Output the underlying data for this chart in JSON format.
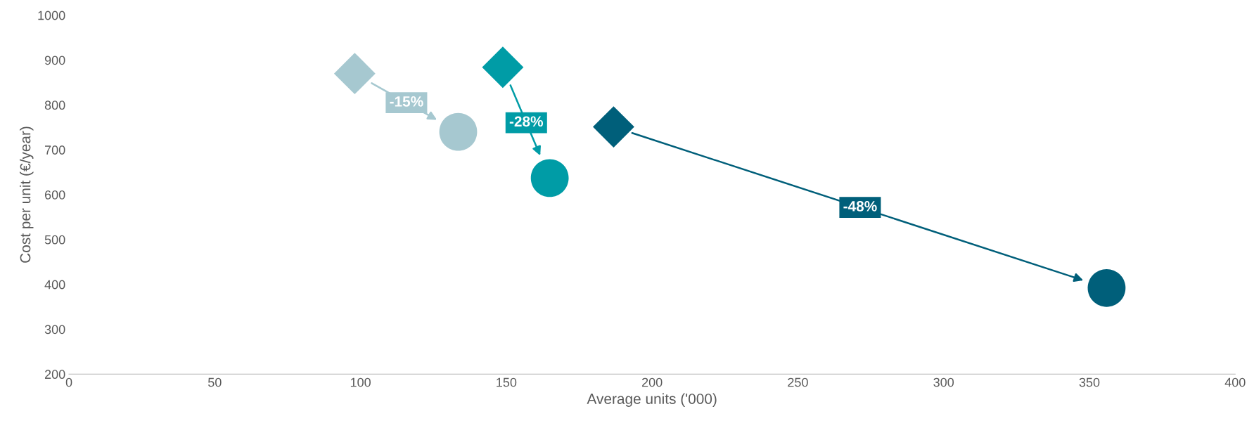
{
  "chart_data": {
    "type": "scatter",
    "xlabel": "Average units ('000)",
    "ylabel": "Cost per unit (€/year)",
    "series": [
      {
        "marker": "diamond",
        "x": [
          98,
          148.8,
          186.8
        ],
        "values": [
          870,
          884,
          751
        ],
        "colors": [
          "#a6c8d0",
          "#009ca6",
          "#005f7a"
        ]
      },
      {
        "marker": "circle",
        "x": [
          133.5,
          164.9,
          355.9
        ],
        "values": [
          740,
          637,
          392
        ],
        "colors": [
          "#a6c8d0",
          "#009ca6",
          "#005f7a"
        ]
      }
    ],
    "annotations": [
      "-15%",
      "-28%",
      "-48%"
    ],
    "xlim": [
      0,
      400
    ],
    "xticks": [
      0,
      50,
      100,
      150,
      200,
      250,
      300,
      350,
      400
    ],
    "ylim": [
      200,
      1000
    ],
    "yticks": [
      200,
      300,
      400,
      500,
      600,
      700,
      800,
      900,
      1000
    ],
    "grid": false,
    "legend": false
  }
}
